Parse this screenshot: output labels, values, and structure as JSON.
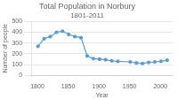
{
  "chart_data": {
    "type": "line",
    "title": "Total Population in Norbury",
    "subtitle": "1801-2011",
    "x_label": "Year",
    "y_label": "Number of people",
    "x": [
      1801,
      1811,
      1821,
      1831,
      1841,
      1851,
      1861,
      1871,
      1881,
      1891,
      1901,
      1911,
      1921,
      1931,
      1951,
      1961,
      1971,
      1981,
      1991,
      2001,
      2011
    ],
    "values": [
      270,
      340,
      360,
      400,
      410,
      380,
      360,
      350,
      180,
      155,
      150,
      145,
      135,
      130,
      125,
      115,
      110,
      120,
      125,
      130,
      140
    ],
    "color": "#5b9bd5",
    "marker": "o",
    "xlim": [
      1790,
      2020
    ],
    "ylim": [
      0,
      500
    ],
    "xticks": [
      1800,
      1850,
      1900,
      1950,
      2000
    ],
    "yticks": [
      0,
      100,
      200,
      300,
      400,
      500
    ],
    "grid": "y"
  }
}
